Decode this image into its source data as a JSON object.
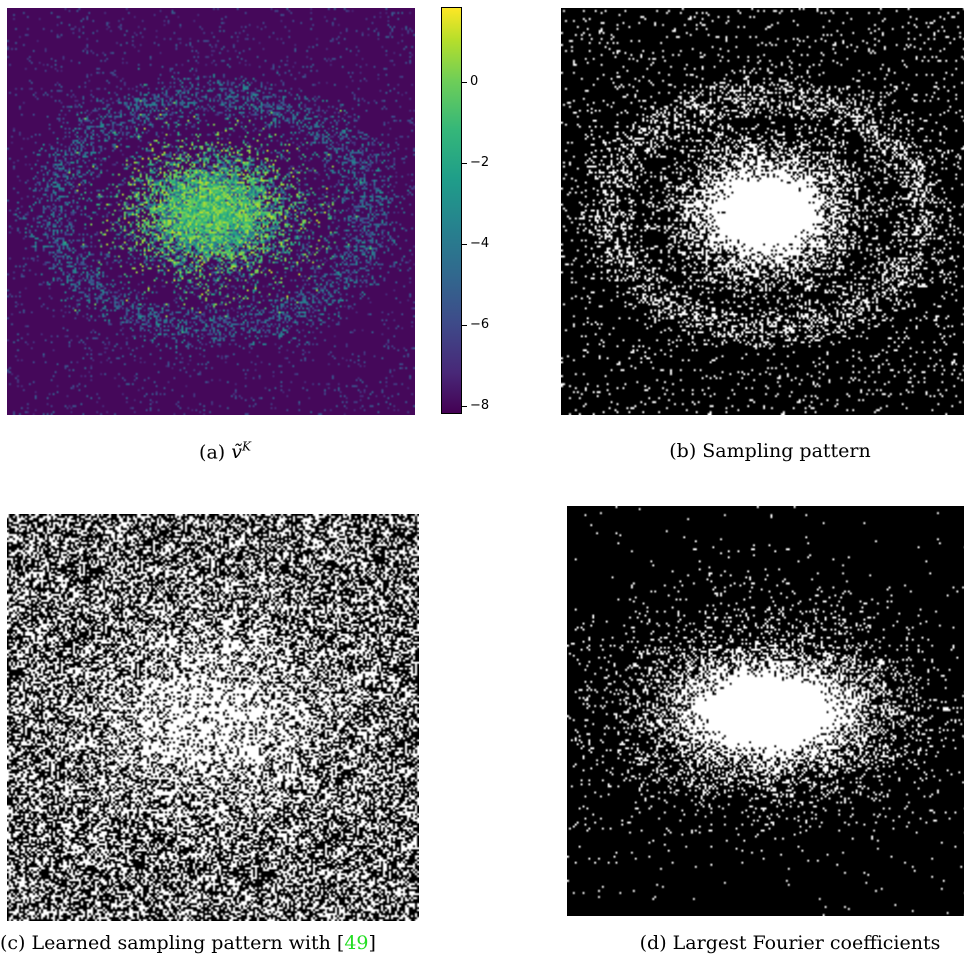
{
  "panels": {
    "a": {
      "caption_prefix": "(a) ",
      "caption_math_base": "ṽ",
      "caption_math_sup": "K",
      "colormap": "viridis",
      "colorbar": {
        "ticks": [
          "0",
          "−2",
          "−4",
          "−6",
          "−8"
        ],
        "min": -8.3,
        "max": 1.7
      }
    },
    "b": {
      "caption": "(b) Sampling pattern",
      "colormap": "binary"
    },
    "c": {
      "caption_prefix": "(c) Learned sampling pattern with [",
      "caption_ref": "49",
      "caption_suffix": "]",
      "colormap": "binary"
    },
    "d": {
      "caption": "(d) Largest Fourier coefficients",
      "colormap": "binary"
    }
  },
  "colors": {
    "reference_link": "#22dd22",
    "viridis_low": "#440154",
    "viridis_high": "#fde725"
  }
}
